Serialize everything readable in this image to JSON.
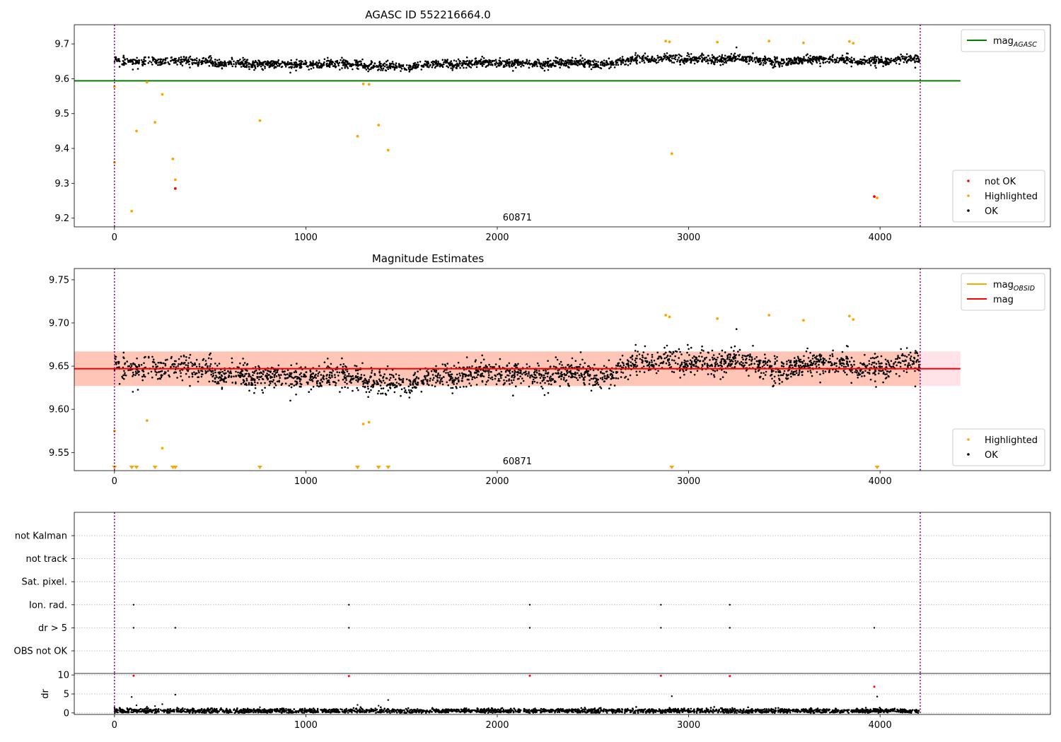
{
  "colors": {
    "ok": "#000000",
    "not_ok": "#ff0000",
    "highlighted": "#ffa500",
    "mag_agasc": "#008000",
    "mag": "#ff0000",
    "mag_obsid": "#ffa500",
    "obs_boundary": "#800080",
    "band_pink": "#ffc0cb",
    "band_orange": "#ffa07a",
    "grid": "#b0b0b0"
  },
  "chart_data": [
    {
      "id": "top",
      "type": "scatter",
      "title": "AGASC ID 552216664.0",
      "xlim": [
        -210,
        4890
      ],
      "ylim": [
        9.175,
        9.755
      ],
      "xticks": [
        0,
        1000,
        2000,
        3000,
        4000
      ],
      "yticks": [
        9.2,
        9.3,
        9.4,
        9.5,
        9.6,
        9.7
      ],
      "ytick_decimals": 1,
      "obs_boundaries": [
        0,
        4210
      ],
      "obs_label": "60871",
      "obs_label_x": 2105,
      "hlines": [
        {
          "name": "mag_AGASC",
          "y": 9.594,
          "x0": -210,
          "x1": 4420,
          "color": "#008000"
        }
      ],
      "ok_band": {
        "y_center": 9.648,
        "y_spread": 0.014
      },
      "highlighted": [
        [
          0,
          9.577
        ],
        [
          0,
          9.36
        ],
        [
          90,
          9.22
        ],
        [
          115,
          9.45
        ],
        [
          170,
          9.59
        ],
        [
          212,
          9.475
        ],
        [
          250,
          9.555
        ],
        [
          305,
          9.37
        ],
        [
          318,
          9.31
        ],
        [
          760,
          9.48
        ],
        [
          1270,
          9.435
        ],
        [
          1300,
          9.585
        ],
        [
          1330,
          9.584
        ],
        [
          1380,
          9.467
        ],
        [
          1430,
          9.395
        ],
        [
          2880,
          9.708
        ],
        [
          2900,
          9.706
        ],
        [
          2912,
          9.385
        ],
        [
          3150,
          9.705
        ],
        [
          3420,
          9.708
        ],
        [
          3600,
          9.703
        ],
        [
          3840,
          9.707
        ],
        [
          3860,
          9.702
        ],
        [
          3985,
          9.258
        ]
      ],
      "not_ok": [
        [
          318,
          9.285
        ],
        [
          3970,
          9.262
        ]
      ],
      "legends": [
        {
          "corner": "top-right",
          "entries": [
            {
              "label": "mag",
              "sub": "AGASC",
              "kind": "line",
              "color": "#008000"
            }
          ]
        },
        {
          "corner": "bottom-right",
          "entries": [
            {
              "label": "not OK",
              "kind": "dot",
              "color": "#ff0000"
            },
            {
              "label": "Highlighted",
              "kind": "dot",
              "color": "#ffa500"
            },
            {
              "label": "OK",
              "kind": "dot",
              "color": "#000000"
            }
          ]
        }
      ]
    },
    {
      "id": "middle",
      "type": "scatter",
      "title": "Magnitude Estimates",
      "xlim": [
        -210,
        4890
      ],
      "ylim": [
        9.529,
        9.763
      ],
      "xticks": [
        0,
        1000,
        2000,
        3000,
        4000
      ],
      "yticks": [
        9.55,
        9.6,
        9.65,
        9.7,
        9.75
      ],
      "ytick_decimals": 2,
      "obs_boundaries": [
        0,
        4210
      ],
      "obs_label": "60871",
      "obs_label_x": 2105,
      "bands": [
        {
          "name": "mag range",
          "y0": 9.627,
          "y1": 9.667,
          "x0": -210,
          "x1": 4420,
          "color": "#ffc0cb"
        },
        {
          "name": "mag_OBSID range",
          "y0": 9.627,
          "y1": 9.667,
          "x0": -210,
          "x1": 4210,
          "color": "#ffa07a"
        }
      ],
      "hlines": [
        {
          "name": "mag",
          "y": 9.647,
          "x0": -210,
          "x1": 4420,
          "color": "#ff0000"
        }
      ],
      "ok_band": {
        "y_center": 9.645,
        "y_spread": 0.016
      },
      "highlighted": [
        [
          0,
          9.575
        ],
        [
          170,
          9.587
        ],
        [
          250,
          9.555
        ],
        [
          1300,
          9.583
        ],
        [
          1330,
          9.585
        ],
        [
          2880,
          9.709
        ],
        [
          2900,
          9.707
        ],
        [
          3150,
          9.705
        ],
        [
          3420,
          9.709
        ],
        [
          3600,
          9.703
        ],
        [
          3840,
          9.708
        ],
        [
          3860,
          9.704
        ]
      ],
      "below_range": [
        0,
        90,
        115,
        212,
        305,
        318,
        760,
        1270,
        1380,
        1430,
        2912,
        3985
      ],
      "legends": [
        {
          "corner": "top-right",
          "entries": [
            {
              "label": "mag",
              "sub": "OBSID",
              "kind": "line",
              "color": "#ffa500"
            },
            {
              "label": "mag",
              "kind": "line",
              "color": "#ff0000"
            }
          ]
        },
        {
          "corner": "bottom-right",
          "entries": [
            {
              "label": "Highlighted",
              "kind": "dot",
              "color": "#ffa500"
            },
            {
              "label": "OK",
              "kind": "dot",
              "color": "#000000"
            }
          ]
        }
      ]
    },
    {
      "id": "flags",
      "type": "scatter",
      "xlim": [
        -210,
        4890
      ],
      "rows": [
        "not Kalman",
        "not track",
        "Sat. pixel.",
        "Ion. rad.",
        "dr > 5",
        "OBS not OK"
      ],
      "obs_boundaries": [
        0,
        4210
      ],
      "events": {
        "Ion. rad.": [
          100,
          1225,
          2170,
          2855,
          3215
        ],
        "dr > 5": [
          100,
          318,
          1225,
          2170,
          2855,
          3215,
          3970
        ]
      }
    },
    {
      "id": "dr",
      "type": "scatter",
      "xlim": [
        -210,
        4890
      ],
      "ylim": [
        -0.4,
        10.4
      ],
      "xticks": [
        0,
        1000,
        2000,
        3000,
        4000
      ],
      "yticks": [
        0,
        5,
        10
      ],
      "ylabel": "dr",
      "obs_boundaries": [
        0,
        4210
      ],
      "ok_band": {
        "y_center": 0.55,
        "y_spread": 0.3
      },
      "highlighted_points": [
        [
          0,
          1.4
        ],
        [
          90,
          4.2
        ],
        [
          115,
          2.0
        ],
        [
          170,
          1.6
        ],
        [
          212,
          1.8
        ],
        [
          250,
          2.3
        ],
        [
          318,
          4.8
        ],
        [
          760,
          1.5
        ],
        [
          1270,
          2.1
        ],
        [
          1380,
          1.9
        ],
        [
          1430,
          3.4
        ],
        [
          2912,
          4.4
        ],
        [
          3985,
          4.3
        ]
      ],
      "not_ok_points": [
        [
          100,
          9.8
        ],
        [
          1225,
          9.7
        ],
        [
          2170,
          9.8
        ],
        [
          2855,
          9.8
        ],
        [
          3215,
          9.7
        ],
        [
          3970,
          6.9
        ]
      ]
    }
  ]
}
